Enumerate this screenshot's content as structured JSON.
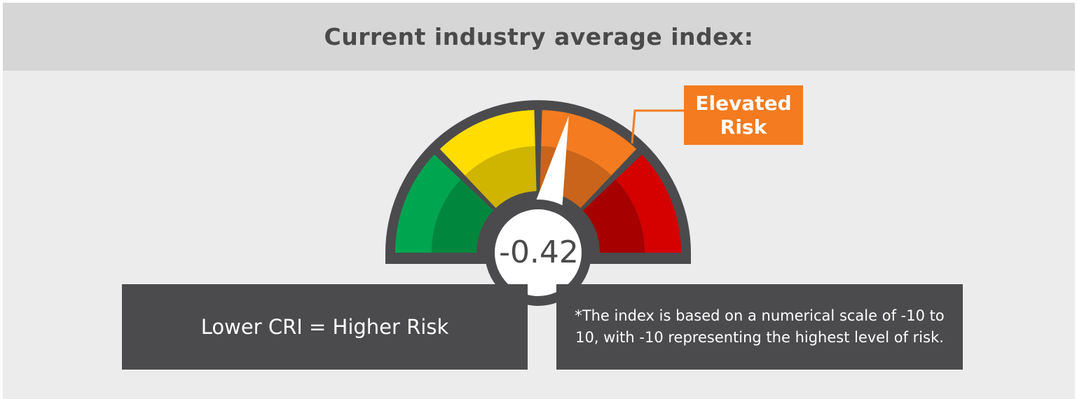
{
  "header": {
    "title": "Current industry average index:"
  },
  "chart_data": {
    "type": "gauge",
    "value": -0.42,
    "value_label": "-0.42",
    "scale": [
      -10,
      10
    ],
    "segments": [
      {
        "color": "#00a550",
        "inner_color": "#00873e"
      },
      {
        "color": "#ffdd00",
        "inner_color": "#cfb400"
      },
      {
        "color": "#f47b20",
        "inner_color": "#c9641a"
      },
      {
        "color": "#d50000",
        "inner_color": "#a60000"
      }
    ],
    "highlighted_segment": 2,
    "risk_label": [
      "Elevated",
      "Risk"
    ]
  },
  "notes": {
    "left": "Lower CRI = Higher Risk",
    "right": "*The index is based on a numerical scale of -10 to 10, with -10 representing the highest level of risk."
  },
  "colors": {
    "dark": "#4b4b4d",
    "accent": "#f47b20"
  }
}
